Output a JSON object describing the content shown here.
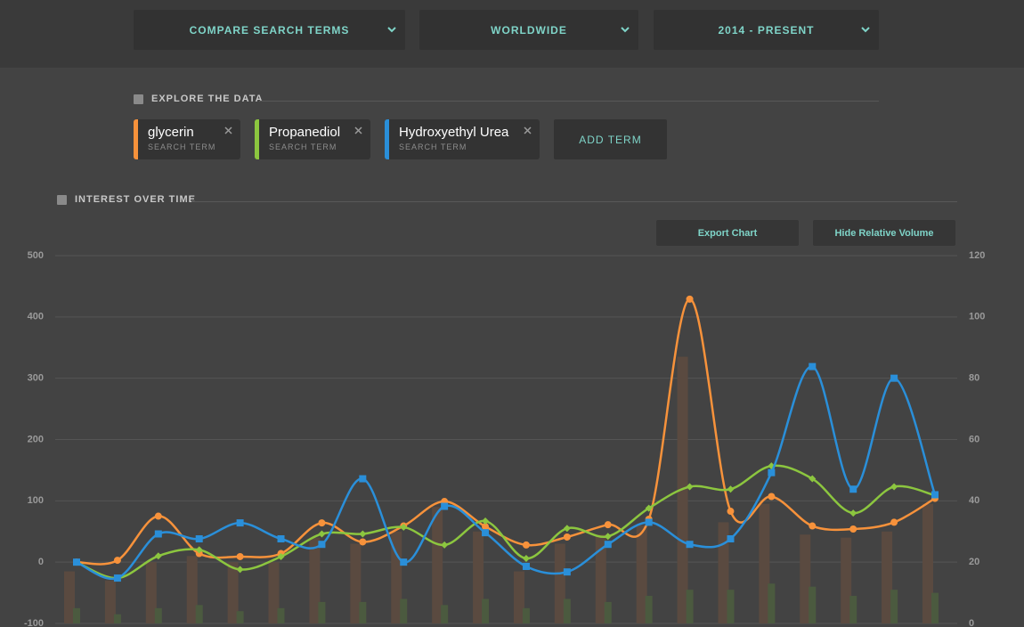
{
  "toolbar": {
    "dropdowns": [
      "COMPARE SEARCH TERMS",
      "WORLDWIDE",
      "2014 - PRESENT"
    ]
  },
  "explore": {
    "heading": "EXPLORE THE DATA",
    "terms": [
      {
        "name": "glycerin",
        "sub": "SEARCH TERM",
        "color": "#f7923b"
      },
      {
        "name": "Propanediol",
        "sub": "SEARCH TERM",
        "color": "#8cc63f"
      },
      {
        "name": "Hydroxyethyl Urea",
        "sub": "SEARCH TERM",
        "color": "#2a8fd9"
      }
    ],
    "add": "ADD TERM"
  },
  "interest": {
    "heading": "INTEREST OVER TIME",
    "buttons": [
      "Export Chart",
      "Hide Relative Volume"
    ]
  },
  "chart_data": {
    "type": "line",
    "ylim": [
      -100,
      500
    ],
    "yticks": [
      -100,
      0,
      100,
      200,
      300,
      400,
      500
    ],
    "y2lim": [
      0,
      120
    ],
    "y2ticks": [
      0,
      20,
      40,
      60,
      80,
      100,
      120
    ],
    "grid": true,
    "series": [
      {
        "name": "glycerin",
        "color": "#f7923b",
        "marker": "circle",
        "values": [
          0,
          3,
          75,
          14,
          9,
          14,
          64,
          33,
          59,
          99,
          58,
          28,
          41,
          61,
          70,
          429,
          83,
          107,
          59,
          54,
          65,
          104
        ]
      },
      {
        "name": "Propanediol",
        "color": "#8cc63f",
        "marker": "diamond",
        "values": [
          0,
          -26,
          10,
          20,
          -12,
          9,
          46,
          46,
          57,
          28,
          67,
          6,
          55,
          42,
          88,
          123,
          119,
          157,
          136,
          80,
          123,
          109
        ]
      },
      {
        "name": "Hydroxyethyl Urea",
        "color": "#2a8fd9",
        "marker": "square",
        "values": [
          0,
          -26,
          46,
          38,
          64,
          38,
          29,
          136,
          0,
          91,
          48,
          -7,
          -16,
          29,
          65,
          29,
          38,
          146,
          319,
          119,
          300,
          110
        ]
      },
      {
        "type": "bar",
        "axis": "y2",
        "color": "#5a4a40",
        "values": [
          17,
          14,
          20,
          22,
          20,
          20,
          28,
          26,
          30,
          38,
          30,
          17,
          26,
          29,
          32,
          87,
          33,
          39,
          29,
          28,
          30,
          39
        ]
      },
      {
        "type": "bar",
        "axis": "y2",
        "color": "#4b5a3f",
        "values": [
          5,
          3,
          5,
          6,
          4,
          5,
          7,
          7,
          8,
          6,
          8,
          5,
          8,
          7,
          9,
          11,
          11,
          13,
          12,
          9,
          11,
          10
        ]
      }
    ]
  }
}
